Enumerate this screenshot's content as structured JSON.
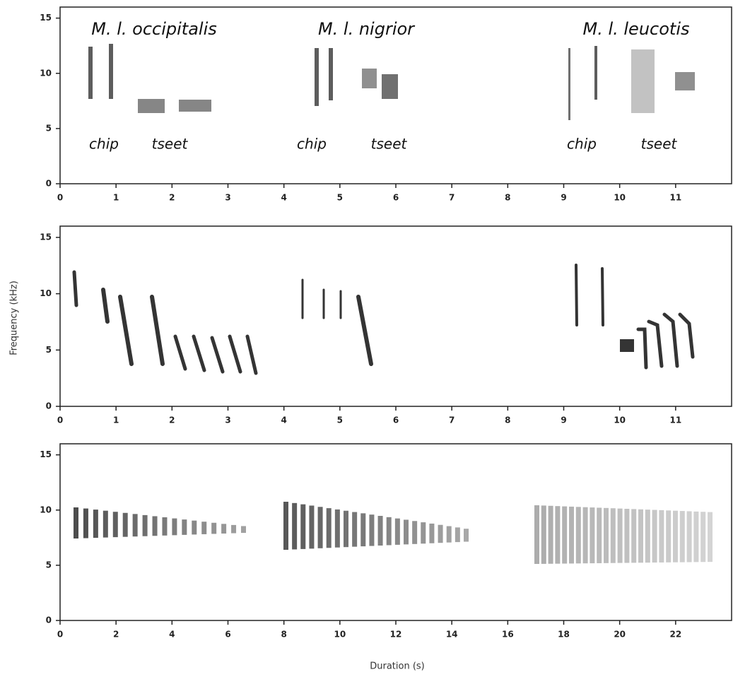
{
  "chart_data": [
    {
      "type": "spectrogram",
      "xlim": [
        0,
        12
      ],
      "ylim": [
        0,
        16
      ],
      "xticks": [
        0,
        1,
        2,
        3,
        4,
        5,
        6,
        7,
        8,
        9,
        10,
        11
      ],
      "yticks": [
        0,
        5,
        10,
        15
      ],
      "annotations": [
        "M. l. occipitalis",
        "M. l. nigrior",
        "M. l. leucotis",
        "chip",
        "tseet",
        "chip",
        "tseet",
        "chip",
        "tseet"
      ]
    },
    {
      "type": "spectrogram",
      "xlim": [
        0,
        12
      ],
      "ylim": [
        0,
        16
      ],
      "xticks": [
        0,
        1,
        2,
        3,
        4,
        5,
        6,
        7,
        8,
        9,
        10,
        11
      ],
      "yticks": [
        0,
        5,
        10,
        15
      ],
      "ylabel": "Frequency (kHz)"
    },
    {
      "type": "spectrogram",
      "xlim": [
        0,
        24
      ],
      "ylim": [
        0,
        16
      ],
      "xticks": [
        0,
        2,
        4,
        6,
        8,
        10,
        12,
        14,
        16,
        18,
        20,
        22
      ],
      "yticks": [
        0,
        5,
        10,
        15
      ],
      "xlabel": "Duration (s)"
    }
  ]
}
